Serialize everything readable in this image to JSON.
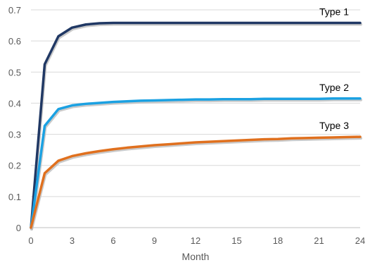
{
  "chart_data": {
    "type": "line",
    "title": "",
    "xlabel": "Month",
    "ylabel": "",
    "xlim": [
      0,
      24
    ],
    "ylim": [
      0,
      0.7
    ],
    "xticks": [
      0,
      3,
      6,
      9,
      12,
      15,
      18,
      21,
      24
    ],
    "yticks": [
      0,
      0.1,
      0.2,
      0.3,
      0.4,
      0.5,
      0.6,
      0.7
    ],
    "xtick_labels": [
      "0",
      "3",
      "6",
      "9",
      "12",
      "15",
      "18",
      "21",
      "24"
    ],
    "ytick_labels": [
      "0",
      "0.1",
      "0.2",
      "0.3",
      "0.4",
      "0.5",
      "0.6",
      "0.7"
    ],
    "grid": "horizontal",
    "legend": "inline labels at line ends",
    "x": [
      0,
      1,
      2,
      3,
      4,
      5,
      6,
      7,
      8,
      9,
      10,
      11,
      12,
      13,
      14,
      15,
      16,
      17,
      18,
      19,
      20,
      21,
      22,
      23,
      24
    ],
    "series": [
      {
        "name": "Type 1",
        "color": "#203864",
        "values": [
          0,
          0.525,
          0.615,
          0.643,
          0.653,
          0.657,
          0.658,
          0.658,
          0.658,
          0.658,
          0.658,
          0.658,
          0.658,
          0.658,
          0.658,
          0.658,
          0.658,
          0.658,
          0.658,
          0.658,
          0.658,
          0.658,
          0.658,
          0.658,
          0.658
        ]
      },
      {
        "name": "Type 2",
        "color": "#1ba1e2",
        "values": [
          0,
          0.327,
          0.381,
          0.393,
          0.398,
          0.401,
          0.404,
          0.406,
          0.408,
          0.409,
          0.41,
          0.411,
          0.412,
          0.412,
          0.413,
          0.413,
          0.413,
          0.414,
          0.414,
          0.414,
          0.414,
          0.414,
          0.415,
          0.415,
          0.415
        ]
      },
      {
        "name": "Type 3",
        "color": "#e0701e",
        "values": [
          0,
          0.175,
          0.215,
          0.23,
          0.239,
          0.246,
          0.252,
          0.257,
          0.261,
          0.265,
          0.268,
          0.271,
          0.274,
          0.276,
          0.278,
          0.28,
          0.282,
          0.284,
          0.285,
          0.287,
          0.288,
          0.289,
          0.29,
          0.291,
          0.292
        ]
      }
    ]
  }
}
